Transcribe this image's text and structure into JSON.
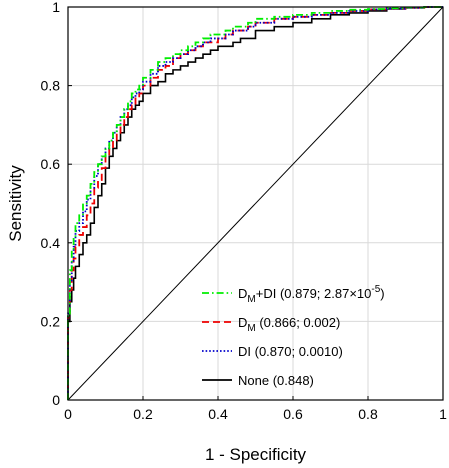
{
  "chart_data": {
    "type": "line",
    "xlabel": "1 - Specificity",
    "ylabel": "Sensitivity",
    "xlim": [
      0,
      1
    ],
    "ylim": [
      0,
      1
    ],
    "grid": true,
    "legend_position": "bottom-right",
    "x_ticks": [
      "0",
      "0.2",
      "0.4",
      "0.6",
      "0.8",
      "1"
    ],
    "y_ticks": [
      "0",
      "0.2",
      "0.4",
      "0.6",
      "0.8",
      "1"
    ],
    "reference_line": {
      "x": [
        0,
        1
      ],
      "y": [
        0,
        1
      ]
    },
    "series": [
      {
        "name": "DM+DI (0.879; 2.87×10-5)",
        "legend": {
          "pre": "D",
          "sub": "M",
          "mid": "+DI (0.879; 2.87×10",
          "sup": "-5",
          "post": ")"
        },
        "color": "#00ee00",
        "style": "dashdot",
        "x": [
          0,
          0.005,
          0.01,
          0.015,
          0.02,
          0.03,
          0.04,
          0.05,
          0.06,
          0.07,
          0.08,
          0.09,
          0.1,
          0.11,
          0.12,
          0.13,
          0.14,
          0.15,
          0.16,
          0.17,
          0.18,
          0.19,
          0.2,
          0.22,
          0.24,
          0.26,
          0.28,
          0.3,
          0.32,
          0.34,
          0.36,
          0.38,
          0.4,
          0.42,
          0.44,
          0.46,
          0.48,
          0.5,
          0.55,
          0.6,
          0.65,
          0.7,
          0.75,
          0.8,
          0.85,
          0.9,
          0.95,
          1.0
        ],
        "y": [
          0,
          0.22,
          0.33,
          0.38,
          0.41,
          0.45,
          0.47,
          0.5,
          0.52,
          0.55,
          0.58,
          0.6,
          0.62,
          0.64,
          0.66,
          0.68,
          0.7,
          0.72,
          0.74,
          0.76,
          0.78,
          0.79,
          0.8,
          0.82,
          0.84,
          0.86,
          0.87,
          0.88,
          0.89,
          0.9,
          0.91,
          0.92,
          0.93,
          0.93,
          0.94,
          0.95,
          0.95,
          0.96,
          0.97,
          0.975,
          0.98,
          0.985,
          0.99,
          0.993,
          0.995,
          0.997,
          0.999,
          1.0
        ]
      },
      {
        "name": "DM (0.866; 0.002)",
        "legend": {
          "pre": "D",
          "sub": "M",
          "mid": " (0.866; 0.002)",
          "sup": "",
          "post": ""
        },
        "color": "#ee0000",
        "style": "dashed",
        "x": [
          0,
          0.005,
          0.01,
          0.015,
          0.02,
          0.03,
          0.04,
          0.05,
          0.06,
          0.07,
          0.08,
          0.09,
          0.1,
          0.11,
          0.12,
          0.13,
          0.14,
          0.15,
          0.16,
          0.17,
          0.18,
          0.19,
          0.2,
          0.22,
          0.24,
          0.26,
          0.28,
          0.3,
          0.32,
          0.34,
          0.36,
          0.38,
          0.4,
          0.42,
          0.44,
          0.46,
          0.48,
          0.5,
          0.55,
          0.6,
          0.65,
          0.7,
          0.75,
          0.8,
          0.85,
          0.9,
          0.95,
          1.0
        ],
        "y": [
          0,
          0.21,
          0.28,
          0.33,
          0.36,
          0.39,
          0.42,
          0.44,
          0.47,
          0.5,
          0.54,
          0.56,
          0.59,
          0.62,
          0.64,
          0.66,
          0.68,
          0.7,
          0.72,
          0.74,
          0.75,
          0.77,
          0.78,
          0.8,
          0.82,
          0.84,
          0.85,
          0.87,
          0.88,
          0.89,
          0.9,
          0.91,
          0.91,
          0.92,
          0.93,
          0.94,
          0.94,
          0.95,
          0.96,
          0.97,
          0.975,
          0.98,
          0.985,
          0.99,
          0.994,
          0.996,
          0.998,
          1.0
        ]
      },
      {
        "name": "DI (0.870; 0.0010)",
        "legend": {
          "pre": "DI (0.870; 0.0010)",
          "sub": "",
          "mid": "",
          "sup": "",
          "post": ""
        },
        "color": "#0000cc",
        "style": "dotted",
        "x": [
          0,
          0.005,
          0.01,
          0.015,
          0.02,
          0.03,
          0.04,
          0.05,
          0.06,
          0.07,
          0.08,
          0.09,
          0.1,
          0.11,
          0.12,
          0.13,
          0.14,
          0.15,
          0.16,
          0.17,
          0.18,
          0.19,
          0.2,
          0.22,
          0.24,
          0.26,
          0.28,
          0.3,
          0.32,
          0.34,
          0.36,
          0.38,
          0.4,
          0.42,
          0.44,
          0.46,
          0.48,
          0.5,
          0.55,
          0.6,
          0.65,
          0.7,
          0.75,
          0.8,
          0.85,
          0.9,
          0.95,
          1.0
        ],
        "y": [
          0,
          0.22,
          0.3,
          0.35,
          0.39,
          0.43,
          0.45,
          0.48,
          0.51,
          0.54,
          0.57,
          0.6,
          0.62,
          0.64,
          0.66,
          0.68,
          0.7,
          0.72,
          0.74,
          0.75,
          0.77,
          0.78,
          0.79,
          0.81,
          0.83,
          0.85,
          0.86,
          0.87,
          0.88,
          0.89,
          0.9,
          0.91,
          0.92,
          0.92,
          0.93,
          0.94,
          0.94,
          0.95,
          0.96,
          0.97,
          0.975,
          0.98,
          0.985,
          0.99,
          0.994,
          0.996,
          0.998,
          1.0
        ]
      },
      {
        "name": "None (0.848)",
        "legend": {
          "pre": "None (0.848)",
          "sub": "",
          "mid": "",
          "sup": "",
          "post": ""
        },
        "color": "#000000",
        "style": "solid",
        "x": [
          0,
          0.005,
          0.01,
          0.015,
          0.02,
          0.03,
          0.04,
          0.05,
          0.06,
          0.07,
          0.08,
          0.09,
          0.1,
          0.11,
          0.12,
          0.13,
          0.14,
          0.15,
          0.16,
          0.17,
          0.18,
          0.19,
          0.2,
          0.22,
          0.24,
          0.26,
          0.28,
          0.3,
          0.32,
          0.34,
          0.36,
          0.38,
          0.4,
          0.42,
          0.44,
          0.46,
          0.48,
          0.5,
          0.55,
          0.6,
          0.65,
          0.7,
          0.75,
          0.8,
          0.85,
          0.9,
          0.95,
          1.0
        ],
        "y": [
          0,
          0.2,
          0.25,
          0.28,
          0.31,
          0.34,
          0.37,
          0.4,
          0.42,
          0.45,
          0.49,
          0.52,
          0.55,
          0.59,
          0.62,
          0.64,
          0.66,
          0.68,
          0.7,
          0.72,
          0.74,
          0.75,
          0.76,
          0.78,
          0.8,
          0.81,
          0.83,
          0.84,
          0.85,
          0.86,
          0.87,
          0.88,
          0.89,
          0.9,
          0.9,
          0.91,
          0.92,
          0.92,
          0.94,
          0.95,
          0.96,
          0.97,
          0.98,
          0.985,
          0.99,
          0.995,
          0.998,
          1.0
        ]
      }
    ]
  }
}
